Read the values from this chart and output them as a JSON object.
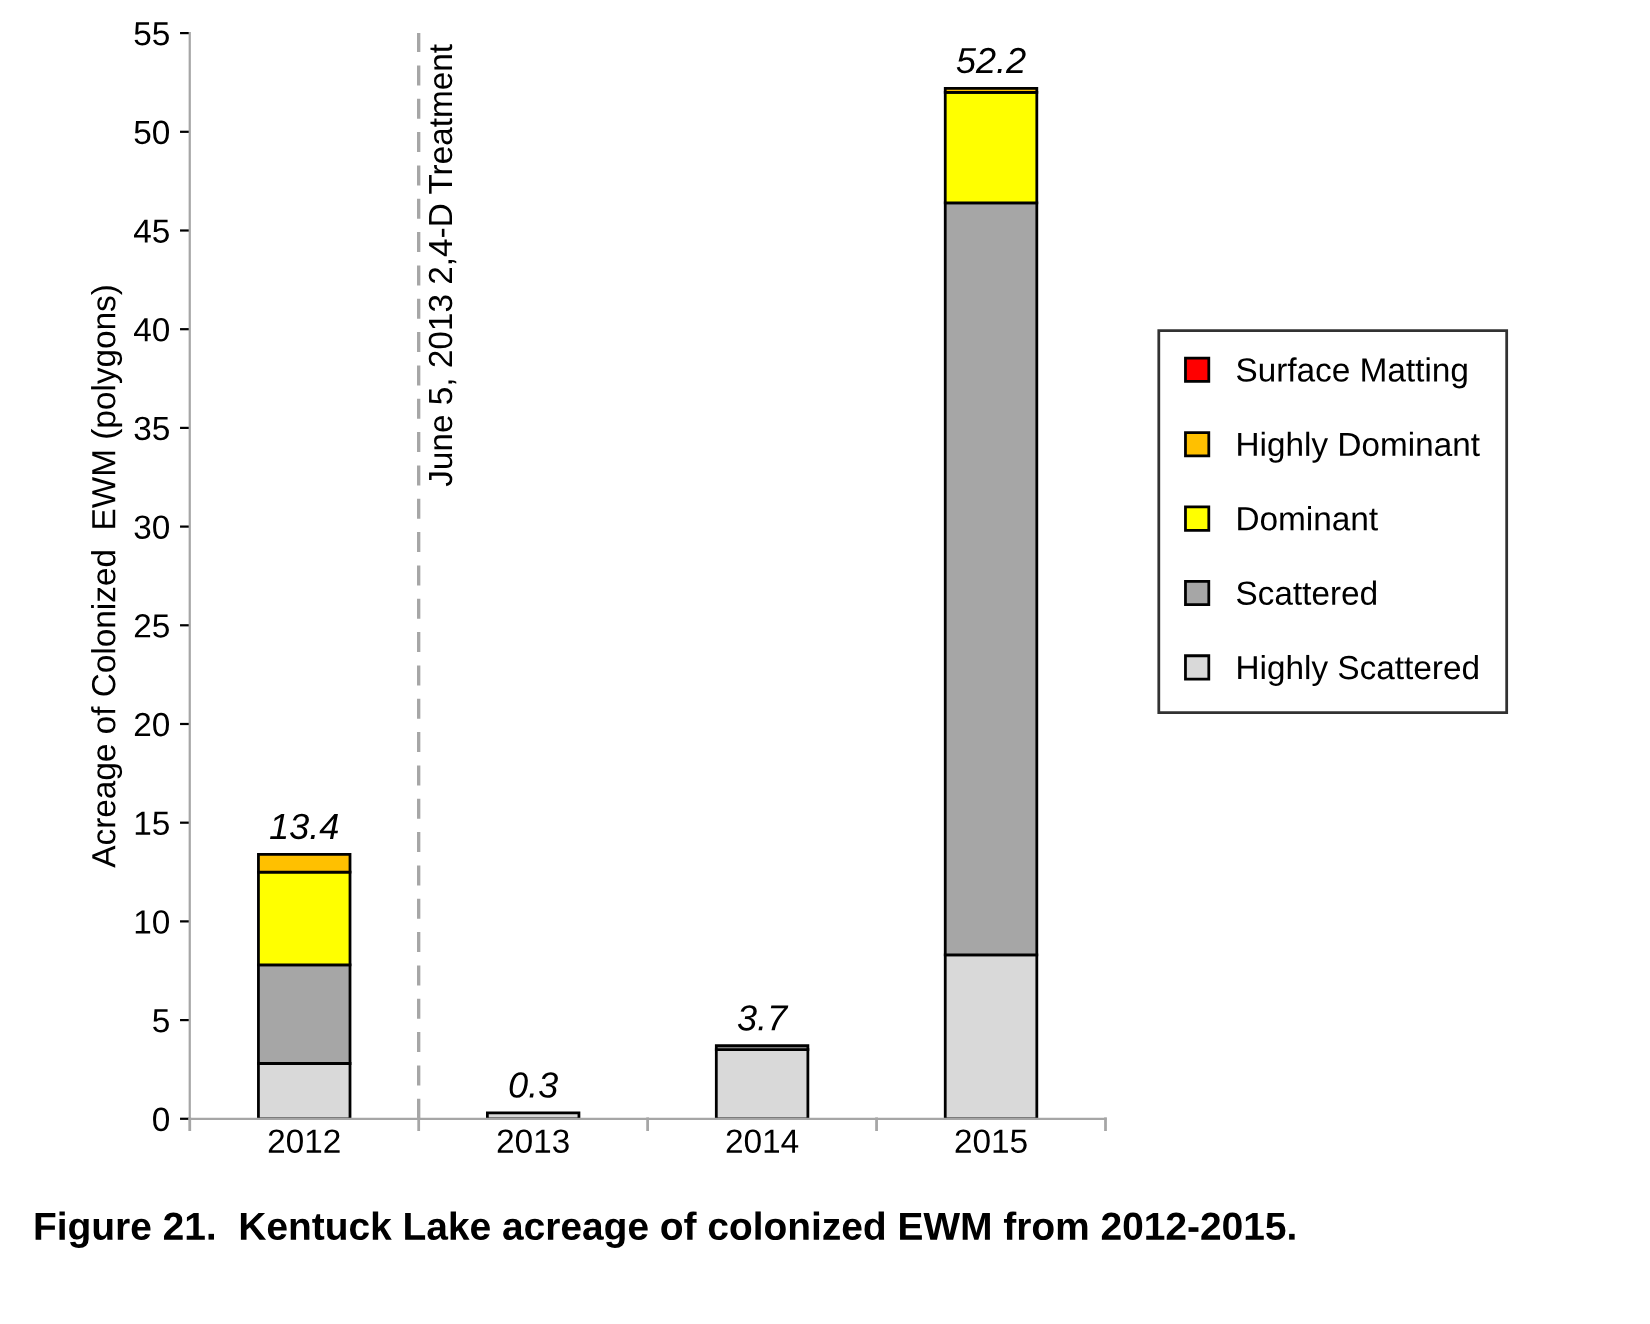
{
  "chart_data": {
    "type": "bar",
    "stacked": true,
    "ylabel": "Acreage of Colonized  EWM (polygons)",
    "categories": [
      "2012",
      "2013",
      "2014",
      "2015"
    ],
    "series": [
      {
        "name": "Highly Scattered",
        "color": "#d9d9d9",
        "values": [
          2.8,
          0.3,
          3.5,
          8.3
        ]
      },
      {
        "name": "Scattered",
        "color": "#a6a6a6",
        "values": [
          5.0,
          null,
          0.2,
          38.1
        ]
      },
      {
        "name": "Dominant",
        "color": "#ffff00",
        "values": [
          4.7,
          null,
          null,
          5.6
        ]
      },
      {
        "name": "Highly Dominant",
        "color": "#ffc000",
        "values": [
          0.9,
          null,
          null,
          0.2
        ]
      },
      {
        "name": "Surface Matting",
        "color": "#ff0000",
        "values": [
          null,
          null,
          null,
          null
        ]
      }
    ],
    "totals": [
      "13.4",
      "0.3",
      "3.7",
      "52.2"
    ],
    "ylim": [
      0,
      55
    ],
    "yticks": [
      0,
      5,
      10,
      15,
      20,
      25,
      30,
      35,
      40,
      45,
      50,
      55
    ],
    "grid": false,
    "legend": "right",
    "annotations": [
      "June 5, 2013 2,4-D Treatment",
      "Figure 21.  Kentuck Lake acreage of colonized EWM from 2012-2015."
    ]
  }
}
